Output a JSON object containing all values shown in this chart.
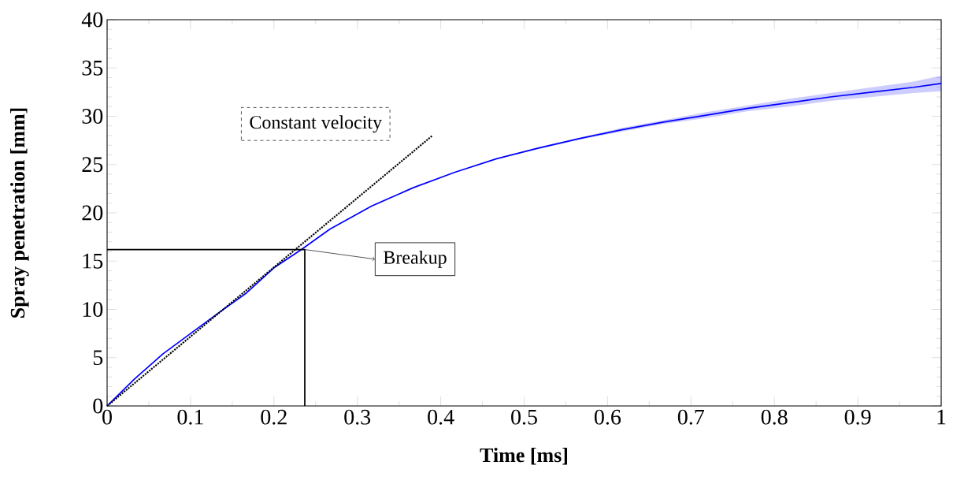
{
  "chart_data": {
    "type": "line",
    "xlabel": "Time [ms]",
    "ylabel": "Spray penetration [mm]",
    "xlim": [
      0,
      1
    ],
    "ylim": [
      0,
      40
    ],
    "xticks": [
      0,
      0.1,
      0.2,
      0.3,
      0.4,
      0.5,
      0.6,
      0.7,
      0.8,
      0.9,
      1
    ],
    "yticks": [
      0,
      5,
      10,
      15,
      20,
      25,
      30,
      35,
      40
    ],
    "series": [
      {
        "color": "#0000ff",
        "x": [
          0,
          0.033,
          0.067,
          0.1,
          0.133,
          0.167,
          0.2,
          0.233,
          0.267,
          0.317,
          0.367,
          0.417,
          0.467,
          0.517,
          0.567,
          0.617,
          0.667,
          0.717,
          0.767,
          0.817,
          0.867,
          0.917,
          0.967,
          1.0
        ],
        "values": [
          0,
          2.8,
          5.4,
          7.5,
          9.6,
          11.7,
          14.3,
          16.2,
          18.3,
          20.7,
          22.6,
          24.2,
          25.6,
          26.7,
          27.7,
          28.6,
          29.4,
          30.1,
          30.8,
          31.4,
          32.0,
          32.5,
          33.0,
          33.4
        ],
        "lower": [
          0,
          2.8,
          5.4,
          7.5,
          9.6,
          11.7,
          14.3,
          16.2,
          18.3,
          20.7,
          22.6,
          24.2,
          25.6,
          26.6,
          27.6,
          28.4,
          29.2,
          29.8,
          30.5,
          31.0,
          31.6,
          32.0,
          32.4,
          32.6
        ],
        "upper": [
          0,
          2.8,
          5.4,
          7.5,
          9.6,
          11.7,
          14.3,
          16.2,
          18.3,
          20.7,
          22.6,
          24.2,
          25.6,
          26.8,
          27.8,
          28.8,
          29.6,
          30.4,
          31.1,
          31.8,
          32.4,
          33.0,
          33.6,
          34.2
        ]
      },
      {
        "color": "#000000",
        "line_style": "dotted",
        "x": [
          0,
          0.39
        ],
        "values": [
          0,
          28
        ]
      },
      {
        "color": "#000000",
        "x": [
          0,
          0.237,
          0.237
        ],
        "values": [
          16.2,
          16.2,
          0
        ]
      }
    ],
    "annotations": [
      "Constant velocity",
      {
        "text": "Breakup",
        "x": 0.237,
        "y": 16.2
      }
    ]
  }
}
